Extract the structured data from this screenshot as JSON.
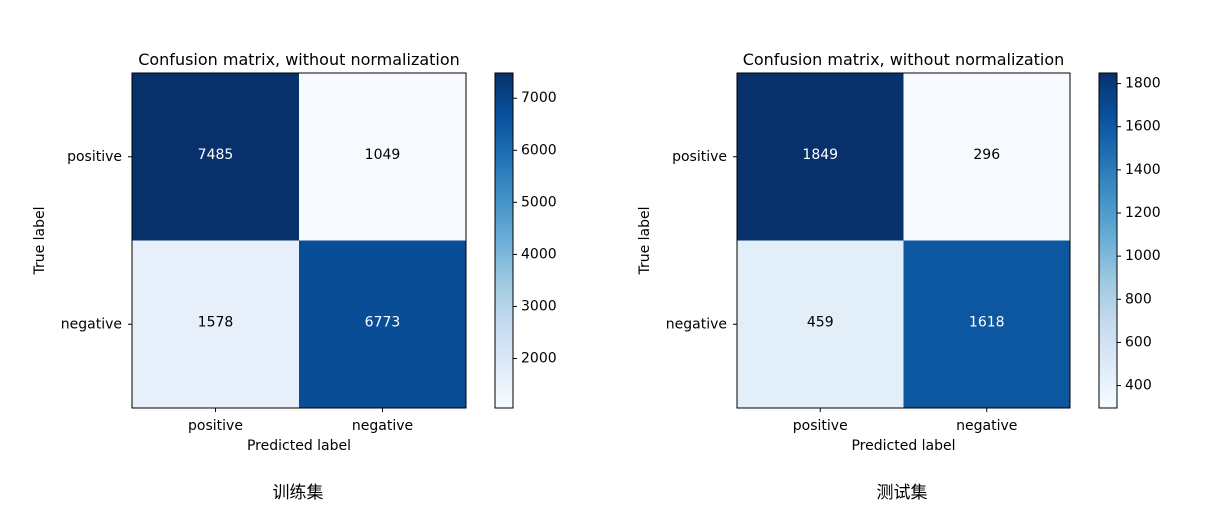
{
  "chart_data": [
    {
      "type": "heatmap",
      "title": "Confusion matrix, without normalization",
      "xlabel": "Predicted label",
      "ylabel": "True label",
      "x_categories": [
        "positive",
        "negative"
      ],
      "y_categories": [
        "positive",
        "negative"
      ],
      "matrix": [
        [
          7485,
          1049
        ],
        [
          1578,
          6773
        ]
      ],
      "colormap": "Blues",
      "colorbar": {
        "range": [
          1049,
          7485
        ],
        "ticks": [
          2000,
          3000,
          4000,
          5000,
          6000,
          7000
        ]
      },
      "grid": false,
      "caption": "训练集"
    },
    {
      "type": "heatmap",
      "title": "Confusion matrix, without normalization",
      "xlabel": "Predicted label",
      "ylabel": "True label",
      "x_categories": [
        "positive",
        "negative"
      ],
      "y_categories": [
        "positive",
        "negative"
      ],
      "matrix": [
        [
          1849,
          296
        ],
        [
          459,
          1618
        ]
      ],
      "colormap": "Blues",
      "colorbar": {
        "range": [
          296,
          1849
        ],
        "ticks": [
          400,
          600,
          800,
          1000,
          1200,
          1400,
          1600,
          1800
        ]
      },
      "grid": false,
      "caption": "测试集"
    }
  ]
}
